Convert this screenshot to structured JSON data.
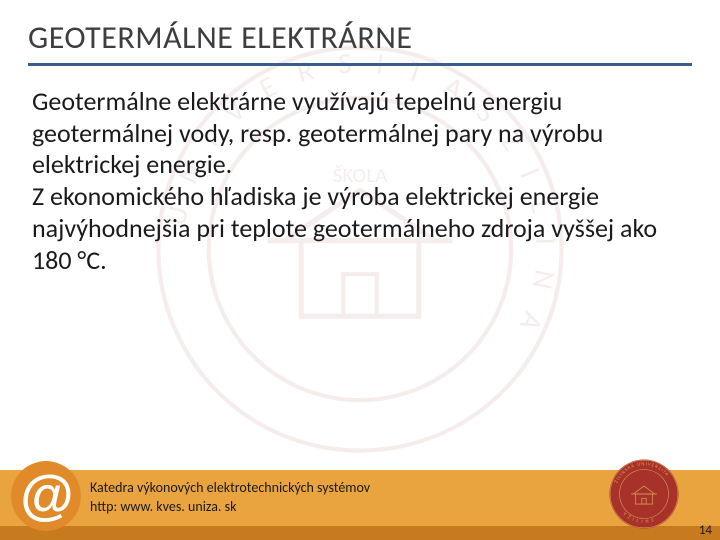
{
  "title": "GEOTERMÁLNE ELEKTRÁRNE",
  "body": "Geotermálne elektrárne využívajú tepelnú energiu geotermálnej vody, resp. geotermálnej pary na výrobu elektrickej energie.\nZ ekonomického hľadiska je výroba elektrickej energie najvýhodnejšia pri teplote geotermálneho zdroja vyššej ako 180 °C.",
  "footer": {
    "line1": "Katedra výkonových elektrotechnických systémov",
    "line2": "http: www. kves. uniza. sk"
  },
  "page_number": "14",
  "colors": {
    "title_underline": "#385d8a",
    "footer_bar": "#e9a440",
    "footer_strip": "#c87a1e",
    "seal_red": "#a8322a",
    "at_orange": "#e08a2a",
    "at_white": "#ffffff",
    "watermark": "#8a2a22"
  },
  "fonts": {
    "title_size": 32,
    "body_size": 26,
    "footer_size": 14
  }
}
